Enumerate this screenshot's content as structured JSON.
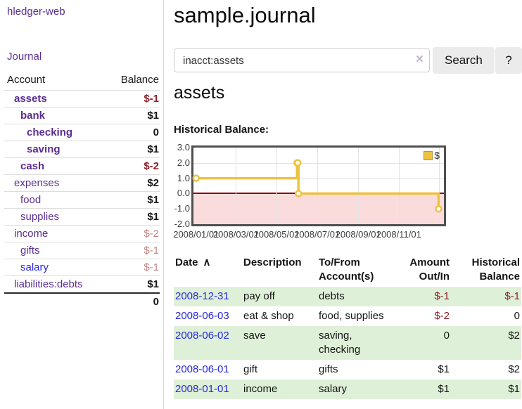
{
  "colors": {
    "link_purple": "#5b2d91",
    "link_blue": "#2828e0",
    "negative_bold": "#8f2027",
    "negative_faded": "#c08585",
    "table_stripe_green": "#dff0d8",
    "chart_line_gold": "#edc240",
    "chart_negative_fill": "#fbdcdc",
    "chart_zero_line": "#8b0000",
    "button_gray": "#ebebeb"
  },
  "app": {
    "brand": "hledger-web",
    "nav_journal": "Journal"
  },
  "sidebar": {
    "header": {
      "account": "Account",
      "balance": "Balance"
    },
    "accounts": [
      {
        "name": "assets",
        "balance": "$-1",
        "indent": 1,
        "bold": true,
        "negative": true,
        "blue": false
      },
      {
        "name": "bank",
        "balance": "$1",
        "indent": 2,
        "bold": true,
        "negative": false,
        "blue": false
      },
      {
        "name": "checking",
        "balance": "0",
        "indent": 3,
        "bold": true,
        "negative": false,
        "blue": false
      },
      {
        "name": "saving",
        "balance": "$1",
        "indent": 3,
        "bold": true,
        "negative": false,
        "blue": false
      },
      {
        "name": "cash",
        "balance": "$-2",
        "indent": 2,
        "bold": true,
        "negative": true,
        "blue": false
      },
      {
        "name": "expenses",
        "balance": "$2",
        "indent": 1,
        "bold": false,
        "negative": false,
        "blue": false
      },
      {
        "name": "food",
        "balance": "$1",
        "indent": 2,
        "bold": false,
        "negative": false,
        "blue": false
      },
      {
        "name": "supplies",
        "balance": "$1",
        "indent": 2,
        "bold": false,
        "negative": false,
        "blue": false
      },
      {
        "name": "income",
        "balance": "$-2",
        "indent": 1,
        "bold": false,
        "negative": true,
        "blue": false
      },
      {
        "name": "gifts",
        "balance": "$-1",
        "indent": 2,
        "bold": false,
        "negative": true,
        "blue": false
      },
      {
        "name": "salary",
        "balance": "$-1",
        "indent": 2,
        "bold": false,
        "negative": true,
        "blue": true
      },
      {
        "name": "liabilities:debts",
        "balance": "$1",
        "indent": 1,
        "bold": false,
        "negative": false,
        "blue": false
      }
    ],
    "total": "0"
  },
  "page": {
    "title": "sample.journal",
    "account_title": "assets",
    "chart_label": "Historical Balance:"
  },
  "search": {
    "value": "inacct:assets",
    "clear_icon": "×",
    "submit_label": "Search",
    "help_label": "?"
  },
  "chart_data": {
    "type": "line",
    "step": true,
    "title": "Historical Balance:",
    "series": [
      {
        "name": "$",
        "color": "#edc240",
        "points": [
          [
            "2008-01-01",
            1
          ],
          [
            "2008-06-01",
            2
          ],
          [
            "2008-06-02",
            2
          ],
          [
            "2008-06-03",
            0
          ],
          [
            "2008-12-31",
            -1
          ]
        ]
      }
    ],
    "ylim": [
      -2,
      3
    ],
    "yticks": [
      {
        "v": 3,
        "label": "3.0"
      },
      {
        "v": 2,
        "label": "2.0"
      },
      {
        "v": 1,
        "label": "1.0"
      },
      {
        "v": 0,
        "label": "0.0"
      },
      {
        "v": -1,
        "label": "-1.0"
      },
      {
        "v": -2,
        "label": "-2.0"
      }
    ],
    "xticks": [
      {
        "label": "2008/01/01",
        "date": "2008-01-01"
      },
      {
        "label": "2008/03/01",
        "date": "2008-03-01"
      },
      {
        "label": "2008/05/01",
        "date": "2008-05-01"
      },
      {
        "label": "2008/07/01",
        "date": "2008-07-01"
      },
      {
        "label": "2008/09/01",
        "date": "2008-09-01"
      },
      {
        "label": "2008/11/01",
        "date": "2008-11-01"
      }
    ],
    "x_gridlines": [
      "2008-03-01",
      "2008-05-01",
      "2008-07-01",
      "2008-09-01",
      "2008-11-01",
      "2009-01-01"
    ],
    "x_domain": [
      "2007-12-28",
      "2009-01-08"
    ],
    "legend_position": "top-right",
    "grid": true
  },
  "register": {
    "headers": [
      {
        "text": "Date",
        "sort": "∧",
        "align": "left"
      },
      {
        "text": "Description",
        "sort": "",
        "align": "left"
      },
      {
        "text": "To/From\nAccount(s)",
        "sort": "",
        "align": "left"
      },
      {
        "text": "Amount\nOut/In",
        "sort": "",
        "align": "right"
      },
      {
        "text": "Historical\nBalance",
        "sort": "",
        "align": "right"
      }
    ],
    "rows": [
      {
        "date": "2008-12-31",
        "description": "pay off",
        "accounts": "debts",
        "amount": "$-1",
        "balance": "$-1"
      },
      {
        "date": "2008-06-03",
        "description": "eat & shop",
        "accounts": "food, supplies",
        "amount": "$-2",
        "balance": "0"
      },
      {
        "date": "2008-06-02",
        "description": "save",
        "accounts": "saving, checking",
        "amount": "0",
        "balance": "$2"
      },
      {
        "date": "2008-06-01",
        "description": "gift",
        "accounts": "gifts",
        "amount": "$1",
        "balance": "$2"
      },
      {
        "date": "2008-01-01",
        "description": "income",
        "accounts": "salary",
        "amount": "$1",
        "balance": "$1"
      }
    ]
  }
}
